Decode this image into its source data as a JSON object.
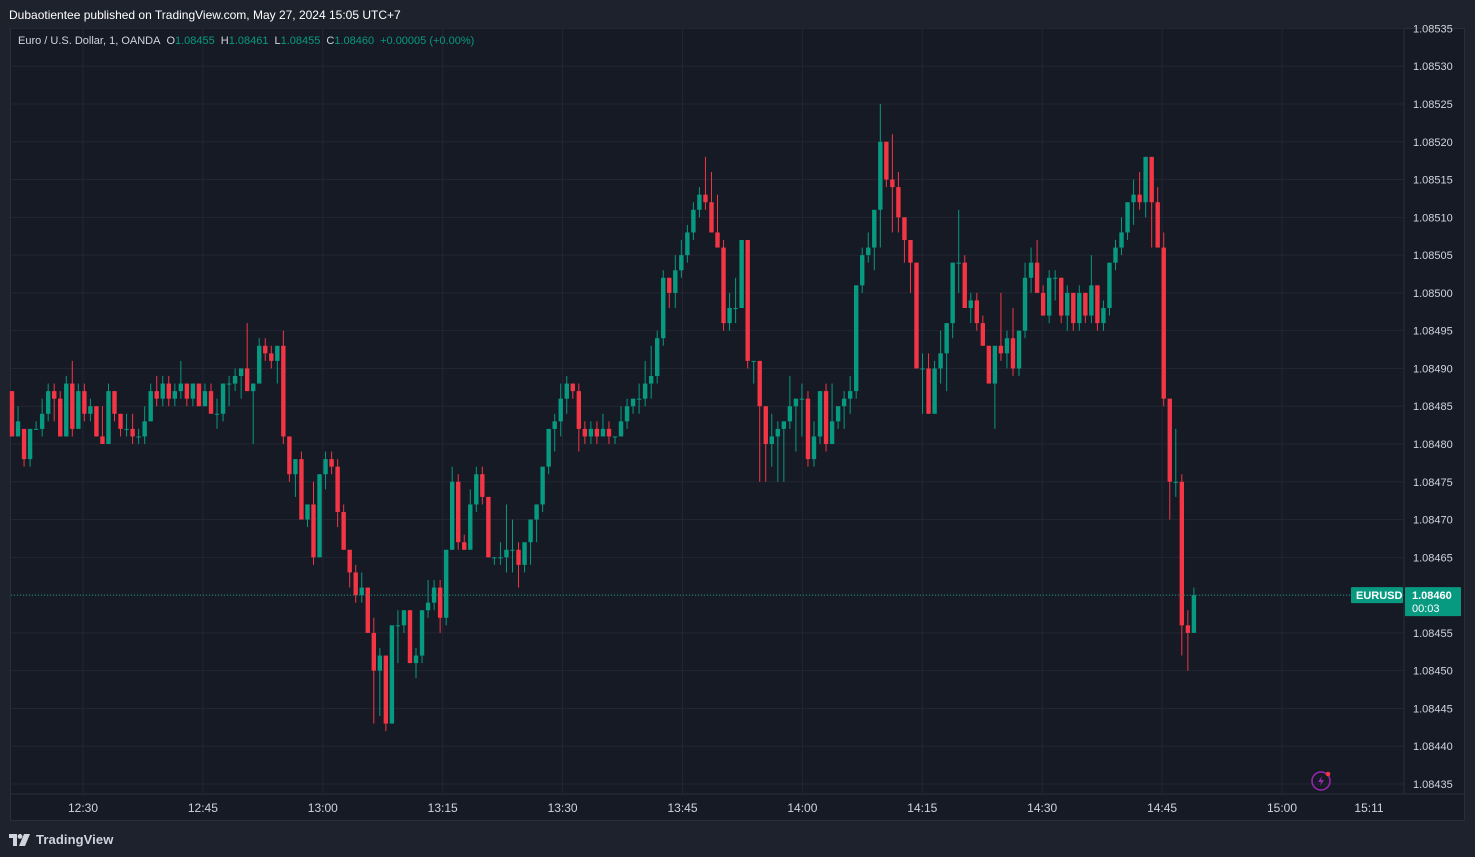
{
  "header": {
    "published_by": "Dubaotientee published on TradingView.com, May 27, 2024 15:05 UTC+7"
  },
  "legend": {
    "instrument": "Euro / U.S. Dollar, 1, OANDA",
    "o_label": "O",
    "o_value": "1.08455",
    "h_label": "H",
    "h_value": "1.08461",
    "l_label": "L",
    "l_value": "1.08455",
    "c_label": "C",
    "c_value": "1.08460",
    "change": "+0.00005 (+0.00%)"
  },
  "price_tag": {
    "symbol": "EURUSD",
    "price": "1.08460",
    "countdown": "00:03"
  },
  "footer": {
    "brand": "TradingView"
  },
  "colors": {
    "up": "#089981",
    "down": "#f23645",
    "background": "#161a25",
    "grid": "#232632",
    "text": "#d1d4dc",
    "accent_icon": "#9c27b0"
  },
  "chart_data": {
    "type": "candlestick",
    "timeframe": "1m",
    "x_ticks": [
      "12:30",
      "12:45",
      "13:00",
      "13:15",
      "13:30",
      "13:45",
      "14:00",
      "14:15",
      "14:30",
      "14:45",
      "15:00",
      "15:11"
    ],
    "y_ticks": [
      "1.08535",
      "1.08530",
      "1.08525",
      "1.08520",
      "1.08515",
      "1.08510",
      "1.08505",
      "1.08500",
      "1.08495",
      "1.08490",
      "1.08485",
      "1.08480",
      "1.08475",
      "1.08470",
      "1.08465",
      "1.08460",
      "1.08455",
      "1.08450",
      "1.08445",
      "1.08440",
      "1.08435"
    ],
    "ylim": [
      1.084335,
      1.085355
    ],
    "last_price": 1.0846,
    "candles_ohlc": [
      [
        1.08487,
        1.08487,
        1.08481,
        1.08481
      ],
      [
        1.08481,
        1.08485,
        1.08481,
        1.08483
      ],
      [
        1.08482,
        1.08482,
        1.08477,
        1.08478
      ],
      [
        1.08478,
        1.08482,
        1.08477,
        1.08482
      ],
      [
        1.08482,
        1.08483,
        1.08482,
        1.08482
      ],
      [
        1.08482,
        1.08486,
        1.08481,
        1.08484
      ],
      [
        1.08484,
        1.08488,
        1.08483,
        1.08487
      ],
      [
        1.08487,
        1.08488,
        1.08483,
        1.08486
      ],
      [
        1.08486,
        1.08487,
        1.08481,
        1.08481
      ],
      [
        1.08481,
        1.08489,
        1.08481,
        1.08488
      ],
      [
        1.08488,
        1.08491,
        1.08481,
        1.08482
      ],
      [
        1.08482,
        1.08488,
        1.08482,
        1.08487
      ],
      [
        1.08487,
        1.08488,
        1.08483,
        1.08484
      ],
      [
        1.08484,
        1.08486,
        1.08483,
        1.08485
      ],
      [
        1.08485,
        1.08485,
        1.08481,
        1.08481
      ],
      [
        1.08481,
        1.08485,
        1.0848,
        1.0848
      ],
      [
        1.0848,
        1.08488,
        1.0848,
        1.08487
      ],
      [
        1.08487,
        1.08487,
        1.08483,
        1.08484
      ],
      [
        1.08484,
        1.08484,
        1.08481,
        1.08482
      ],
      [
        1.08482,
        1.08484,
        1.08481,
        1.08482
      ],
      [
        1.08482,
        1.08484,
        1.0848,
        1.08481
      ],
      [
        1.08481,
        1.08482,
        1.0848,
        1.08481
      ],
      [
        1.08481,
        1.08485,
        1.0848,
        1.08483
      ],
      [
        1.08483,
        1.08488,
        1.08483,
        1.08487
      ],
      [
        1.08487,
        1.08489,
        1.08485,
        1.08486
      ],
      [
        1.08486,
        1.08489,
        1.08485,
        1.08488
      ],
      [
        1.08488,
        1.08489,
        1.08485,
        1.08486
      ],
      [
        1.08486,
        1.08488,
        1.08485,
        1.08487
      ],
      [
        1.08487,
        1.08491,
        1.08486,
        1.08488
      ],
      [
        1.08488,
        1.08488,
        1.08485,
        1.08486
      ],
      [
        1.08486,
        1.08488,
        1.08485,
        1.08488
      ],
      [
        1.08488,
        1.08488,
        1.08485,
        1.08485
      ],
      [
        1.08485,
        1.08488,
        1.08485,
        1.08487
      ],
      [
        1.08487,
        1.08488,
        1.08484,
        1.08484
      ],
      [
        1.08484,
        1.08486,
        1.08482,
        1.08484
      ],
      [
        1.08484,
        1.08488,
        1.08483,
        1.08488
      ],
      [
        1.08488,
        1.08489,
        1.08485,
        1.08488
      ],
      [
        1.08488,
        1.0849,
        1.08487,
        1.08489
      ],
      [
        1.08489,
        1.0849,
        1.08486,
        1.0849
      ],
      [
        1.0849,
        1.08496,
        1.08487,
        1.08487
      ],
      [
        1.08487,
        1.08488,
        1.0848,
        1.08488
      ],
      [
        1.08488,
        1.08494,
        1.08488,
        1.08493
      ],
      [
        1.08493,
        1.08494,
        1.08491,
        1.08492
      ],
      [
        1.08492,
        1.08493,
        1.0849,
        1.08491
      ],
      [
        1.08491,
        1.08492,
        1.08488,
        1.08493
      ],
      [
        1.08493,
        1.08495,
        1.0848,
        1.08481
      ],
      [
        1.08481,
        1.08481,
        1.08475,
        1.08476
      ],
      [
        1.08476,
        1.08478,
        1.08473,
        1.08478
      ],
      [
        1.08478,
        1.08479,
        1.0847,
        1.0847
      ],
      [
        1.0847,
        1.08472,
        1.08469,
        1.08472
      ],
      [
        1.08472,
        1.08475,
        1.08464,
        1.08465
      ],
      [
        1.08465,
        1.08476,
        1.08465,
        1.08476
      ],
      [
        1.08476,
        1.08479,
        1.08474,
        1.08478
      ],
      [
        1.08478,
        1.08479,
        1.08476,
        1.08477
      ],
      [
        1.08477,
        1.08478,
        1.08469,
        1.08471
      ],
      [
        1.08471,
        1.08472,
        1.08466,
        1.08466
      ],
      [
        1.08466,
        1.08466,
        1.08461,
        1.08463
      ],
      [
        1.08463,
        1.08464,
        1.08459,
        1.0846
      ],
      [
        1.0846,
        1.08463,
        1.08459,
        1.08461
      ],
      [
        1.08461,
        1.08461,
        1.08455,
        1.08455
      ],
      [
        1.08455,
        1.08457,
        1.08443,
        1.0845
      ],
      [
        1.0845,
        1.08453,
        1.08444,
        1.08452
      ],
      [
        1.08452,
        1.08452,
        1.08442,
        1.08443
      ],
      [
        1.08443,
        1.08456,
        1.08443,
        1.08456
      ],
      [
        1.08456,
        1.08458,
        1.08451,
        1.08456
      ],
      [
        1.08456,
        1.08458,
        1.08455,
        1.08458
      ],
      [
        1.08458,
        1.08458,
        1.08451,
        1.08451
      ],
      [
        1.08451,
        1.08453,
        1.08449,
        1.08452
      ],
      [
        1.08452,
        1.08458,
        1.08451,
        1.08458
      ],
      [
        1.08458,
        1.08462,
        1.08457,
        1.08459
      ],
      [
        1.08459,
        1.08462,
        1.08458,
        1.08461
      ],
      [
        1.08461,
        1.08462,
        1.08455,
        1.08457
      ],
      [
        1.08457,
        1.08466,
        1.08456,
        1.08466
      ],
      [
        1.08466,
        1.08477,
        1.08466,
        1.08475
      ],
      [
        1.08475,
        1.08476,
        1.08466,
        1.08467
      ],
      [
        1.08467,
        1.08468,
        1.08466,
        1.08466
      ],
      [
        1.08466,
        1.08474,
        1.08466,
        1.08472
      ],
      [
        1.08472,
        1.08477,
        1.08471,
        1.08476
      ],
      [
        1.08476,
        1.08477,
        1.08472,
        1.08473
      ],
      [
        1.08473,
        1.08473,
        1.08465,
        1.08465
      ],
      [
        1.08465,
        1.08465,
        1.08464,
        1.08465
      ],
      [
        1.08465,
        1.08467,
        1.08464,
        1.08465
      ],
      [
        1.08465,
        1.08472,
        1.08463,
        1.08466
      ],
      [
        1.08466,
        1.0847,
        1.08463,
        1.08466
      ],
      [
        1.08466,
        1.08467,
        1.08461,
        1.08464
      ],
      [
        1.08464,
        1.08466,
        1.08463,
        1.08467
      ],
      [
        1.08467,
        1.0847,
        1.08464,
        1.0847
      ],
      [
        1.0847,
        1.08472,
        1.08467,
        1.08472
      ],
      [
        1.08472,
        1.08474,
        1.08471,
        1.08477
      ],
      [
        1.08477,
        1.0848,
        1.08476,
        1.08482
      ],
      [
        1.08482,
        1.08484,
        1.08479,
        1.08483
      ],
      [
        1.08483,
        1.08488,
        1.08481,
        1.08486
      ],
      [
        1.08486,
        1.08489,
        1.08484,
        1.08488
      ],
      [
        1.08488,
        1.08488,
        1.08486,
        1.08487
      ],
      [
        1.08487,
        1.08488,
        1.08479,
        1.08482
      ],
      [
        1.08482,
        1.08483,
        1.0848,
        1.08481
      ],
      [
        1.08481,
        1.08483,
        1.0848,
        1.08482
      ],
      [
        1.08482,
        1.08483,
        1.0848,
        1.08481
      ],
      [
        1.08481,
        1.08484,
        1.08481,
        1.08482
      ],
      [
        1.08482,
        1.08483,
        1.0848,
        1.08481
      ],
      [
        1.08481,
        1.08481,
        1.0848,
        1.08481
      ],
      [
        1.08481,
        1.08485,
        1.08481,
        1.08483
      ],
      [
        1.08483,
        1.08486,
        1.08482,
        1.08485
      ],
      [
        1.08485,
        1.08486,
        1.08484,
        1.08486
      ],
      [
        1.08486,
        1.08488,
        1.08484,
        1.08486
      ],
      [
        1.08486,
        1.08491,
        1.08485,
        1.08488
      ],
      [
        1.08488,
        1.08493,
        1.08486,
        1.08489
      ],
      [
        1.08489,
        1.08495,
        1.08488,
        1.08494
      ],
      [
        1.08494,
        1.08503,
        1.08493,
        1.08502
      ],
      [
        1.08502,
        1.08502,
        1.08498,
        1.085
      ],
      [
        1.085,
        1.08505,
        1.08498,
        1.08503
      ],
      [
        1.08503,
        1.08507,
        1.08502,
        1.08505
      ],
      [
        1.08505,
        1.08509,
        1.08504,
        1.08508
      ],
      [
        1.08508,
        1.08512,
        1.08507,
        1.08511
      ],
      [
        1.08511,
        1.08514,
        1.0851,
        1.08513
      ],
      [
        1.08513,
        1.08518,
        1.08511,
        1.08512
      ],
      [
        1.08512,
        1.08516,
        1.08508,
        1.08508
      ],
      [
        1.08508,
        1.08513,
        1.08506,
        1.08506
      ],
      [
        1.08506,
        1.08507,
        1.08495,
        1.08496
      ],
      [
        1.08496,
        1.085,
        1.08495,
        1.08498
      ],
      [
        1.08498,
        1.08502,
        1.08496,
        1.08498
      ],
      [
        1.08498,
        1.08507,
        1.08498,
        1.08507
      ],
      [
        1.08507,
        1.08507,
        1.0849,
        1.08491
      ],
      [
        1.08491,
        1.08491,
        1.08488,
        1.08491
      ],
      [
        1.08491,
        1.08491,
        1.08475,
        1.08485
      ],
      [
        1.08485,
        1.08485,
        1.08475,
        1.0848
      ],
      [
        1.0848,
        1.08484,
        1.08477,
        1.08481
      ],
      [
        1.08481,
        1.08483,
        1.08475,
        1.08482
      ],
      [
        1.08482,
        1.08483,
        1.08475,
        1.08483
      ],
      [
        1.08483,
        1.08489,
        1.08482,
        1.08485
      ],
      [
        1.08485,
        1.08486,
        1.08479,
        1.08486
      ],
      [
        1.08486,
        1.08488,
        1.08481,
        1.08486
      ],
      [
        1.08486,
        1.08487,
        1.08477,
        1.08478
      ],
      [
        1.08478,
        1.08483,
        1.08477,
        1.08481
      ],
      [
        1.08481,
        1.08487,
        1.0848,
        1.08487
      ],
      [
        1.08487,
        1.08488,
        1.08479,
        1.0848
      ],
      [
        1.0848,
        1.08488,
        1.0848,
        1.08483
      ],
      [
        1.08483,
        1.08485,
        1.08482,
        1.08485
      ],
      [
        1.08485,
        1.08487,
        1.08482,
        1.08486
      ],
      [
        1.08486,
        1.08489,
        1.08484,
        1.08487
      ],
      [
        1.08487,
        1.08501,
        1.08486,
        1.08501
      ],
      [
        1.08501,
        1.08506,
        1.085,
        1.08505
      ],
      [
        1.08505,
        1.08508,
        1.08504,
        1.08506
      ],
      [
        1.08506,
        1.0851,
        1.08503,
        1.08511
      ],
      [
        1.08511,
        1.08525,
        1.08506,
        1.0852
      ],
      [
        1.0852,
        1.0852,
        1.08514,
        1.08515
      ],
      [
        1.08515,
        1.08521,
        1.08508,
        1.08514
      ],
      [
        1.08514,
        1.08516,
        1.08508,
        1.0851
      ],
      [
        1.0851,
        1.0851,
        1.08504,
        1.08507
      ],
      [
        1.08507,
        1.08507,
        1.085,
        1.08504
      ],
      [
        1.08504,
        1.08504,
        1.0849,
        1.0849
      ],
      [
        1.0849,
        1.08492,
        1.08484,
        1.0849
      ],
      [
        1.0849,
        1.08492,
        1.08484,
        1.08484
      ],
      [
        1.08484,
        1.08491,
        1.08484,
        1.0849
      ],
      [
        1.0849,
        1.08495,
        1.08488,
        1.08492
      ],
      [
        1.08492,
        1.08496,
        1.08487,
        1.08496
      ],
      [
        1.08496,
        1.08504,
        1.08494,
        1.08504
      ],
      [
        1.08504,
        1.08511,
        1.085,
        1.08504
      ],
      [
        1.08504,
        1.08505,
        1.08498,
        1.08498
      ],
      [
        1.08498,
        1.085,
        1.08496,
        1.08499
      ],
      [
        1.08499,
        1.085,
        1.08495,
        1.08496
      ],
      [
        1.08496,
        1.08497,
        1.08493,
        1.08493
      ],
      [
        1.08493,
        1.08493,
        1.08488,
        1.08488
      ],
      [
        1.08488,
        1.08493,
        1.08482,
        1.08493
      ],
      [
        1.08493,
        1.085,
        1.08491,
        1.08492
      ],
      [
        1.08492,
        1.08495,
        1.0849,
        1.08494
      ],
      [
        1.08494,
        1.08498,
        1.08489,
        1.0849
      ],
      [
        1.0849,
        1.08495,
        1.08489,
        1.08495
      ],
      [
        1.08495,
        1.08504,
        1.08494,
        1.08502
      ],
      [
        1.08502,
        1.08506,
        1.085,
        1.08504
      ],
      [
        1.08504,
        1.08507,
        1.085,
        1.085
      ],
      [
        1.085,
        1.08501,
        1.08497,
        1.08497
      ],
      [
        1.08497,
        1.08503,
        1.08496,
        1.08502
      ],
      [
        1.08502,
        1.08503,
        1.08499,
        1.08502
      ],
      [
        1.08502,
        1.08502,
        1.08496,
        1.08497
      ],
      [
        1.08497,
        1.08501,
        1.08495,
        1.085
      ],
      [
        1.085,
        1.085,
        1.08495,
        1.08496
      ],
      [
        1.08496,
        1.08501,
        1.08495,
        1.085
      ],
      [
        1.085,
        1.085,
        1.08496,
        1.08497
      ],
      [
        1.08497,
        1.08505,
        1.08496,
        1.08501
      ],
      [
        1.08501,
        1.08501,
        1.08495,
        1.08496
      ],
      [
        1.08496,
        1.08499,
        1.08495,
        1.08498
      ],
      [
        1.08498,
        1.08504,
        1.08497,
        1.08504
      ],
      [
        1.08504,
        1.08507,
        1.08503,
        1.08506
      ],
      [
        1.08506,
        1.0851,
        1.08505,
        1.08508
      ],
      [
        1.08508,
        1.08512,
        1.08507,
        1.08512
      ],
      [
        1.08512,
        1.08515,
        1.08509,
        1.08513
      ],
      [
        1.08513,
        1.08516,
        1.08511,
        1.08512
      ],
      [
        1.08512,
        1.08518,
        1.0851,
        1.08518
      ],
      [
        1.08518,
        1.08518,
        1.08506,
        1.08512
      ],
      [
        1.08512,
        1.08514,
        1.08506,
        1.08506
      ],
      [
        1.08506,
        1.08508,
        1.08485,
        1.08486
      ],
      [
        1.08486,
        1.08486,
        1.0847,
        1.08475
      ],
      [
        1.08475,
        1.08482,
        1.08473,
        1.08475
      ],
      [
        1.08475,
        1.08476,
        1.08452,
        1.08456
      ],
      [
        1.08456,
        1.08458,
        1.0845,
        1.08455
      ],
      [
        1.08455,
        1.08461,
        1.08455,
        1.0846
      ]
    ]
  }
}
